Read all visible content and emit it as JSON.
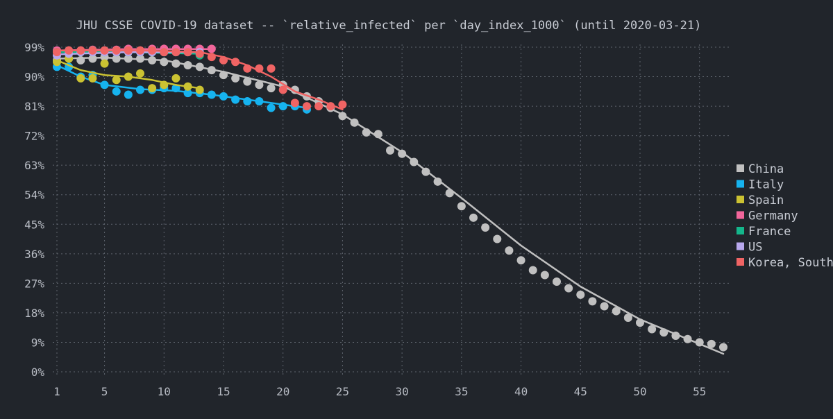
{
  "chart_data": {
    "type": "scatter",
    "title": "JHU CSSE COVID-19 dataset -- `relative_infected` per `day_index_1000` (until 2020-03-21)",
    "xlabel": "",
    "ylabel": "",
    "xlim": [
      1,
      57
    ],
    "ylim": [
      0,
      0.99
    ],
    "x_ticks": [
      1,
      5,
      10,
      15,
      20,
      25,
      30,
      35,
      40,
      45,
      50,
      55
    ],
    "y_ticks": [
      0,
      0.09,
      0.18,
      0.27,
      0.36,
      0.45,
      0.54,
      0.63,
      0.72,
      0.81,
      0.9,
      0.99
    ],
    "y_tick_labels": [
      "0%",
      "9%",
      "18%",
      "27%",
      "36%",
      "45%",
      "54%",
      "63%",
      "72%",
      "81%",
      "90%",
      "99%"
    ],
    "grid": true,
    "legend_position": "right",
    "background": "#21252b",
    "series": [
      {
        "name": "China",
        "color": "#c0c0c0",
        "x": [
          1,
          2,
          3,
          4,
          5,
          6,
          7,
          8,
          9,
          10,
          11,
          12,
          13,
          14,
          15,
          16,
          17,
          18,
          19,
          20,
          21,
          22,
          23,
          24,
          25,
          26,
          27,
          28,
          29,
          30,
          31,
          32,
          33,
          34,
          35,
          36,
          37,
          38,
          39,
          40,
          41,
          42,
          43,
          44,
          45,
          46,
          47,
          48,
          49,
          50,
          51,
          52,
          53,
          54,
          55,
          56,
          57
        ],
        "y": [
          0.95,
          0.955,
          0.95,
          0.955,
          0.96,
          0.955,
          0.955,
          0.955,
          0.95,
          0.945,
          0.94,
          0.935,
          0.93,
          0.92,
          0.905,
          0.895,
          0.885,
          0.875,
          0.865,
          0.875,
          0.86,
          0.84,
          0.825,
          0.805,
          0.78,
          0.76,
          0.73,
          0.725,
          0.675,
          0.665,
          0.64,
          0.61,
          0.58,
          0.545,
          0.505,
          0.47,
          0.44,
          0.405,
          0.37,
          0.34,
          0.31,
          0.295,
          0.275,
          0.255,
          0.235,
          0.215,
          0.2,
          0.185,
          0.165,
          0.15,
          0.13,
          0.12,
          0.11,
          0.1,
          0.09,
          0.085,
          0.075
        ],
        "fit": {
          "x": [
            1,
            5,
            10,
            15,
            20,
            25,
            30,
            35,
            40,
            45,
            50,
            55,
            57
          ],
          "y": [
            0.955,
            0.958,
            0.95,
            0.915,
            0.87,
            0.785,
            0.67,
            0.53,
            0.385,
            0.26,
            0.16,
            0.085,
            0.055
          ]
        }
      },
      {
        "name": "Italy",
        "color": "#16b3ef",
        "x": [
          1,
          2,
          3,
          4,
          5,
          6,
          7,
          8,
          9,
          10,
          11,
          12,
          13,
          14,
          15,
          16,
          17,
          18,
          19,
          20,
          21,
          22
        ],
        "y": [
          0.93,
          0.93,
          0.9,
          0.905,
          0.875,
          0.855,
          0.845,
          0.86,
          0.86,
          0.865,
          0.865,
          0.85,
          0.85,
          0.845,
          0.84,
          0.83,
          0.825,
          0.825,
          0.805,
          0.81,
          0.81,
          0.8
        ],
        "fit": {
          "x": [
            1,
            3,
            5,
            8,
            11,
            14,
            17,
            20,
            22
          ],
          "y": [
            0.935,
            0.9,
            0.875,
            0.862,
            0.857,
            0.845,
            0.83,
            0.815,
            0.805
          ]
        }
      },
      {
        "name": "Spain",
        "color": "#cbc232",
        "x": [
          1,
          2,
          3,
          4,
          5,
          6,
          7,
          8,
          9,
          10,
          11,
          12,
          13
        ],
        "y": [
          0.945,
          0.955,
          0.895,
          0.895,
          0.94,
          0.89,
          0.9,
          0.91,
          0.865,
          0.875,
          0.895,
          0.87,
          0.86
        ],
        "fit": {
          "x": [
            1,
            3,
            5,
            7,
            9,
            11,
            13
          ],
          "y": [
            0.95,
            0.92,
            0.905,
            0.9,
            0.89,
            0.875,
            0.865
          ]
        }
      },
      {
        "name": "Germany",
        "color": "#f2669b",
        "x": [
          1,
          2,
          3,
          4,
          5,
          6,
          7,
          8,
          9,
          10,
          11,
          12,
          13,
          14
        ],
        "y": [
          0.98,
          0.98,
          0.98,
          0.982,
          0.98,
          0.982,
          0.985,
          0.98,
          0.985,
          0.985,
          0.985,
          0.985,
          0.985,
          0.985
        ],
        "fit": {
          "x": [
            1,
            7,
            14
          ],
          "y": [
            0.98,
            0.984,
            0.984
          ]
        }
      },
      {
        "name": "France",
        "color": "#14b68b",
        "x": [
          1,
          2,
          3,
          4,
          5,
          6,
          7,
          8,
          9,
          10,
          11,
          12,
          13
        ],
        "y": [
          0.975,
          0.975,
          0.975,
          0.98,
          0.975,
          0.975,
          0.975,
          0.975,
          0.975,
          0.975,
          0.975,
          0.975,
          0.965
        ],
        "fit": {
          "x": [
            1,
            7,
            13
          ],
          "y": [
            0.975,
            0.975,
            0.97
          ]
        }
      },
      {
        "name": "US",
        "color": "#b8a8ed",
        "x": [
          1,
          2,
          3,
          4,
          5,
          6,
          7,
          8,
          9,
          10,
          11,
          12,
          13
        ],
        "y": [
          0.965,
          0.97,
          0.975,
          0.975,
          0.975,
          0.975,
          0.975,
          0.975,
          0.975,
          0.975,
          0.975,
          0.975,
          0.975
        ],
        "fit": {
          "x": [
            1,
            7,
            13
          ],
          "y": [
            0.968,
            0.975,
            0.975
          ]
        }
      },
      {
        "name": "Korea, South",
        "color": "#f06464",
        "x": [
          1,
          2,
          3,
          4,
          5,
          6,
          7,
          8,
          9,
          10,
          11,
          12,
          13,
          14,
          15,
          16,
          17,
          18,
          19,
          20,
          21,
          22,
          23,
          24,
          25
        ],
        "y": [
          0.975,
          0.98,
          0.98,
          0.98,
          0.98,
          0.98,
          0.98,
          0.98,
          0.98,
          0.975,
          0.975,
          0.975,
          0.97,
          0.96,
          0.95,
          0.945,
          0.925,
          0.925,
          0.925,
          0.86,
          0.82,
          0.81,
          0.81,
          0.81,
          0.815
        ],
        "fit": {
          "x": [
            1,
            8,
            13,
            15,
            17,
            19,
            21,
            23,
            25
          ],
          "y": [
            0.98,
            0.98,
            0.975,
            0.96,
            0.935,
            0.9,
            0.855,
            0.83,
            0.8
          ]
        }
      }
    ]
  }
}
